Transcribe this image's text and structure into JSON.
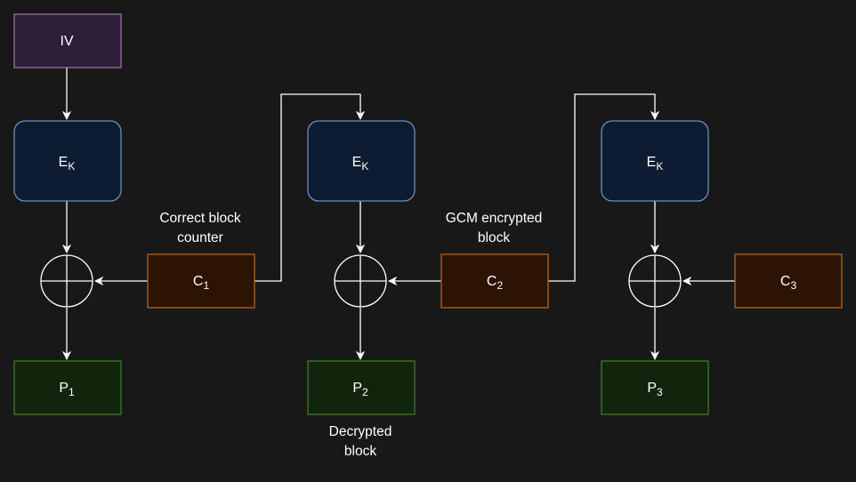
{
  "colors": {
    "background": "#181818",
    "iv_fill": "#2b1e38",
    "iv_stroke": "#9673a6",
    "cipher_fn_fill": "#0d1c31",
    "cipher_fn_stroke": "#6c8ebf",
    "ciphertext_fill": "#2b1404",
    "ciphertext_stroke": "#b1641b",
    "plaintext_fill": "#12250c",
    "plaintext_stroke": "#3f7a28",
    "line": "#ffffff"
  },
  "iv": {
    "label": "IV"
  },
  "encrypt_blocks": [
    {
      "main": "E",
      "sub": "K"
    },
    {
      "main": "E",
      "sub": "K"
    },
    {
      "main": "E",
      "sub": "K"
    }
  ],
  "ciphertext_blocks": [
    {
      "main": "C",
      "sub": "1"
    },
    {
      "main": "C",
      "sub": "2"
    },
    {
      "main": "C",
      "sub": "3"
    }
  ],
  "plaintext_blocks": [
    {
      "main": "P",
      "sub": "1"
    },
    {
      "main": "P",
      "sub": "2"
    },
    {
      "main": "P",
      "sub": "3"
    }
  ],
  "annotations": {
    "counter_line1": "Correct block",
    "counter_line2": "counter",
    "gcm_line1": "GCM encrypted",
    "gcm_line2": "block",
    "decrypted_line1": "Decrypted",
    "decrypted_line2": "block"
  }
}
